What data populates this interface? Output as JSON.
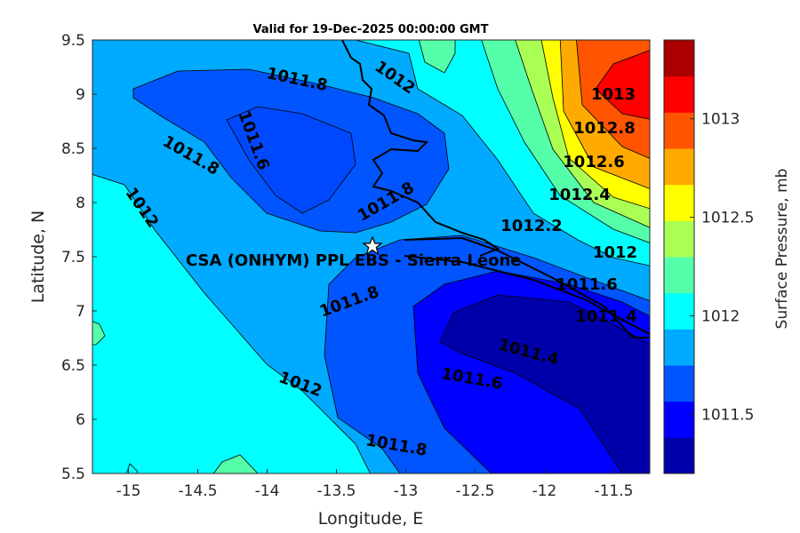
{
  "chart_data": {
    "type": "contour",
    "title": "Valid for 19-Dec-2025 00:00:00 GMT",
    "xlabel": "Longitude, E",
    "ylabel": "Latitude, N",
    "xlim": [
      -15.26,
      -11.24
    ],
    "ylim": [
      5.5,
      9.5
    ],
    "xticks": [
      -15,
      -14.5,
      -14,
      -13.5,
      -13,
      -12.5,
      -12,
      -11.5
    ],
    "xtick_labels": [
      "-15",
      "-14.5",
      "-14",
      "-13.5",
      "-13",
      "-12.5",
      "-12",
      "-11.5"
    ],
    "yticks": [
      5.5,
      6,
      6.5,
      7,
      7.5,
      8,
      8.5,
      9,
      9.5
    ],
    "ytick_labels": [
      "5.5",
      "6",
      "6.5",
      "7",
      "7.5",
      "8",
      "8.5",
      "9",
      "9.5"
    ],
    "colorbar": {
      "label": "Surface Pressure, mb",
      "range": [
        1011.2,
        1013.4
      ],
      "ticks": [
        1011.5,
        1012,
        1012.5,
        1013
      ],
      "tick_labels": [
        "1011.5",
        "1012",
        "1012.5",
        "1013"
      ],
      "colors": [
        "#0000aa",
        "#0000ff",
        "#0055ff",
        "#00aaff",
        "#00ffff",
        "#55ffaa",
        "#aaff55",
        "#ffff00",
        "#ffaa00",
        "#ff5500",
        "#ff0000",
        "#aa0000"
      ]
    },
    "contour_labels": [
      "1011.8",
      "1012",
      "1011.6",
      "1011.8",
      "1012",
      "1011.8",
      "1011.8",
      "1013",
      "1012.8",
      "1012.6",
      "1012.4",
      "1012.2",
      "1012",
      "1011.6",
      "1011.4",
      "1011.4",
      "1011.6",
      "1012",
      "1011.8"
    ],
    "station": {
      "name": "CSA (ONHYM) PPL EBS  - Sierra Leone",
      "lon": -13.25,
      "lat": 7.6
    }
  }
}
